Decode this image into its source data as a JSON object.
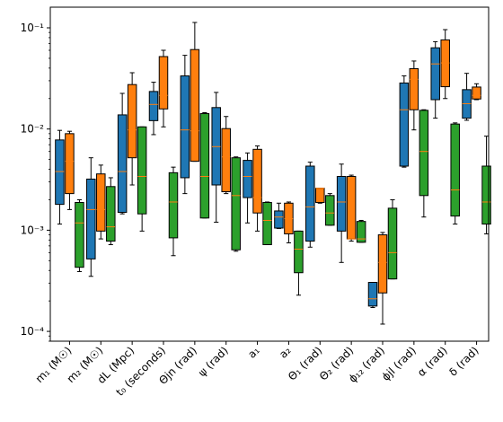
{
  "chart_data": {
    "type": "box",
    "title": "",
    "xlabel": "",
    "ylabel": "",
    "yscale": "log",
    "ylim": [
      8e-05,
      0.16
    ],
    "yticks": [
      {
        "value": 0.0001,
        "label": "10⁻⁴"
      },
      {
        "value": 0.001,
        "label": "10⁻³"
      },
      {
        "value": 0.01,
        "label": "10⁻²"
      },
      {
        "value": 0.1,
        "label": "10⁻¹"
      }
    ],
    "categories": [
      "m₁ (M☉)",
      "m₂ (M☉)",
      "dL (Mpc)",
      "t₀ (seconds)",
      "Θjn (rad)",
      "ψ (rad)",
      "a₁",
      "a₂",
      "Θ₁ (rad)",
      "Θ₂ (rad)",
      "ϕ₁₂ (rad)",
      "ϕjl (rad)",
      "α (rad)",
      "δ (rad)"
    ],
    "series": [
      {
        "color": "#1f77b4",
        "boxes": [
          {
            "whislo": 0.00115,
            "q1": 0.0018,
            "med": 0.0038,
            "q3": 0.0078,
            "whishi": 0.0097
          },
          {
            "whislo": 0.00035,
            "q1": 0.00052,
            "med": 0.0016,
            "q3": 0.0032,
            "whishi": 0.0052
          },
          {
            "whislo": 0.00145,
            "q1": 0.0015,
            "med": 0.0038,
            "q3": 0.0138,
            "whishi": 0.0225
          },
          {
            "whislo": 0.0088,
            "q1": 0.0121,
            "med": 0.0175,
            "q3": 0.0235,
            "whishi": 0.029
          },
          {
            "whislo": 0.0023,
            "q1": 0.0033,
            "med": 0.0098,
            "q3": 0.0335,
            "whishi": 0.0535
          },
          {
            "whislo": 0.0012,
            "q1": 0.0028,
            "med": 0.0067,
            "q3": 0.0163,
            "whishi": 0.023
          },
          {
            "whislo": 0.00118,
            "q1": 0.0021,
            "med": 0.0034,
            "q3": 0.0049,
            "whishi": 0.0058
          },
          {
            "whislo": 0.00104,
            "q1": 0.00105,
            "med": 0.00135,
            "q3": 0.00155,
            "whishi": 0.00185
          },
          {
            "whislo": 0.00068,
            "q1": 0.00078,
            "med": 0.0017,
            "q3": 0.0043,
            "whishi": 0.0047
          },
          {
            "whislo": 0.00048,
            "q1": 0.00098,
            "med": 0.0019,
            "q3": 0.0034,
            "whishi": 0.0045
          },
          {
            "whislo": 0.000172,
            "q1": 0.000178,
            "med": 0.00021,
            "q3": 0.000305,
            "whishi": 0.000305
          },
          {
            "whislo": 0.0042,
            "q1": 0.0043,
            "med": 0.0155,
            "q3": 0.0285,
            "whishi": 0.0335
          },
          {
            "whislo": 0.0128,
            "q1": 0.0195,
            "med": 0.044,
            "q3": 0.0635,
            "whishi": 0.073
          },
          {
            "whislo": 0.0122,
            "q1": 0.0128,
            "med": 0.0178,
            "q3": 0.0245,
            "whishi": 0.0355
          }
        ]
      },
      {
        "color": "#ff7f0e",
        "boxes": [
          {
            "whislo": 0.0016,
            "q1": 0.0023,
            "med": 0.0048,
            "q3": 0.009,
            "whishi": 0.0095
          },
          {
            "whislo": 0.00082,
            "q1": 0.00098,
            "med": 0.0016,
            "q3": 0.0036,
            "whishi": 0.0044
          },
          {
            "whislo": 0.0028,
            "q1": 0.0052,
            "med": 0.0098,
            "q3": 0.0275,
            "whishi": 0.036
          },
          {
            "whislo": 0.0105,
            "q1": 0.0158,
            "med": 0.0215,
            "q3": 0.052,
            "whishi": 0.06
          },
          {
            "whislo": 0.0048,
            "q1": 0.0048,
            "med": 0.0096,
            "q3": 0.061,
            "whishi": 0.113
          },
          {
            "whislo": 0.0023,
            "q1": 0.0024,
            "med": 0.0053,
            "q3": 0.0101,
            "whishi": 0.0133
          },
          {
            "whislo": 0.00098,
            "q1": 0.00148,
            "med": 0.0021,
            "q3": 0.0063,
            "whishi": 0.0068
          },
          {
            "whislo": 0.00075,
            "q1": 0.00092,
            "med": 0.0013,
            "q3": 0.00185,
            "whishi": 0.0019
          },
          {
            "whislo": 0.00185,
            "q1": 0.00188,
            "med": 0.0026,
            "q3": 0.0026,
            "whishi": 0.0026
          },
          {
            "whislo": 0.00078,
            "q1": 0.00082,
            "med": 0.00082,
            "q3": 0.0034,
            "whishi": 0.0035
          },
          {
            "whislo": 0.000118,
            "q1": 0.00024,
            "med": 0.00048,
            "q3": 0.0009,
            "whishi": 0.00095
          },
          {
            "whislo": 0.0098,
            "q1": 0.0155,
            "med": 0.031,
            "q3": 0.0395,
            "whishi": 0.047
          },
          {
            "whislo": 0.02,
            "q1": 0.0262,
            "med": 0.045,
            "q3": 0.076,
            "whishi": 0.096
          },
          {
            "whislo": 0.0195,
            "q1": 0.0198,
            "med": 0.0215,
            "q3": 0.026,
            "whishi": 0.028
          }
        ]
      },
      {
        "color": "#2ca02c",
        "boxes": [
          {
            "whislo": 0.00039,
            "q1": 0.00043,
            "med": 0.00118,
            "q3": 0.00188,
            "whishi": 0.002
          },
          {
            "whislo": 0.00072,
            "q1": 0.00078,
            "med": 0.00108,
            "q3": 0.0027,
            "whishi": 0.0033
          },
          {
            "whislo": 0.00098,
            "q1": 0.00145,
            "med": 0.0034,
            "q3": 0.0105,
            "whishi": 0.0105
          },
          {
            "whislo": 0.00056,
            "q1": 0.00084,
            "med": 0.0019,
            "q3": 0.0037,
            "whishi": 0.0042
          },
          {
            "whislo": 0.00132,
            "q1": 0.00132,
            "med": 0.0034,
            "q3": 0.0142,
            "whishi": 0.0145
          },
          {
            "whislo": 0.00062,
            "q1": 0.00064,
            "med": 0.0022,
            "q3": 0.0052,
            "whishi": 0.0053
          },
          {
            "whislo": 0.00072,
            "q1": 0.00072,
            "med": 0.00125,
            "q3": 0.00188,
            "whishi": 0.0019
          },
          {
            "whislo": 0.000228,
            "q1": 0.00038,
            "med": 0.00065,
            "q3": 0.00098,
            "whishi": 0.00098
          },
          {
            "whislo": 0.00112,
            "q1": 0.00112,
            "med": 0.00148,
            "q3": 0.0022,
            "whishi": 0.0023
          },
          {
            "whislo": 0.00076,
            "q1": 0.00076,
            "med": 0.00082,
            "q3": 0.00122,
            "whishi": 0.00125
          },
          {
            "whislo": 0.00033,
            "q1": 0.00033,
            "med": 0.0006,
            "q3": 0.00165,
            "whishi": 0.002
          },
          {
            "whislo": 0.00135,
            "q1": 0.0022,
            "med": 0.006,
            "q3": 0.0153,
            "whishi": 0.0155
          },
          {
            "whislo": 0.00115,
            "q1": 0.00138,
            "med": 0.0025,
            "q3": 0.0112,
            "whishi": 0.0115
          },
          {
            "whislo": 0.00092,
            "q1": 0.00115,
            "med": 0.0019,
            "q3": 0.0043,
            "whishi": 0.0085
          }
        ]
      }
    ]
  }
}
